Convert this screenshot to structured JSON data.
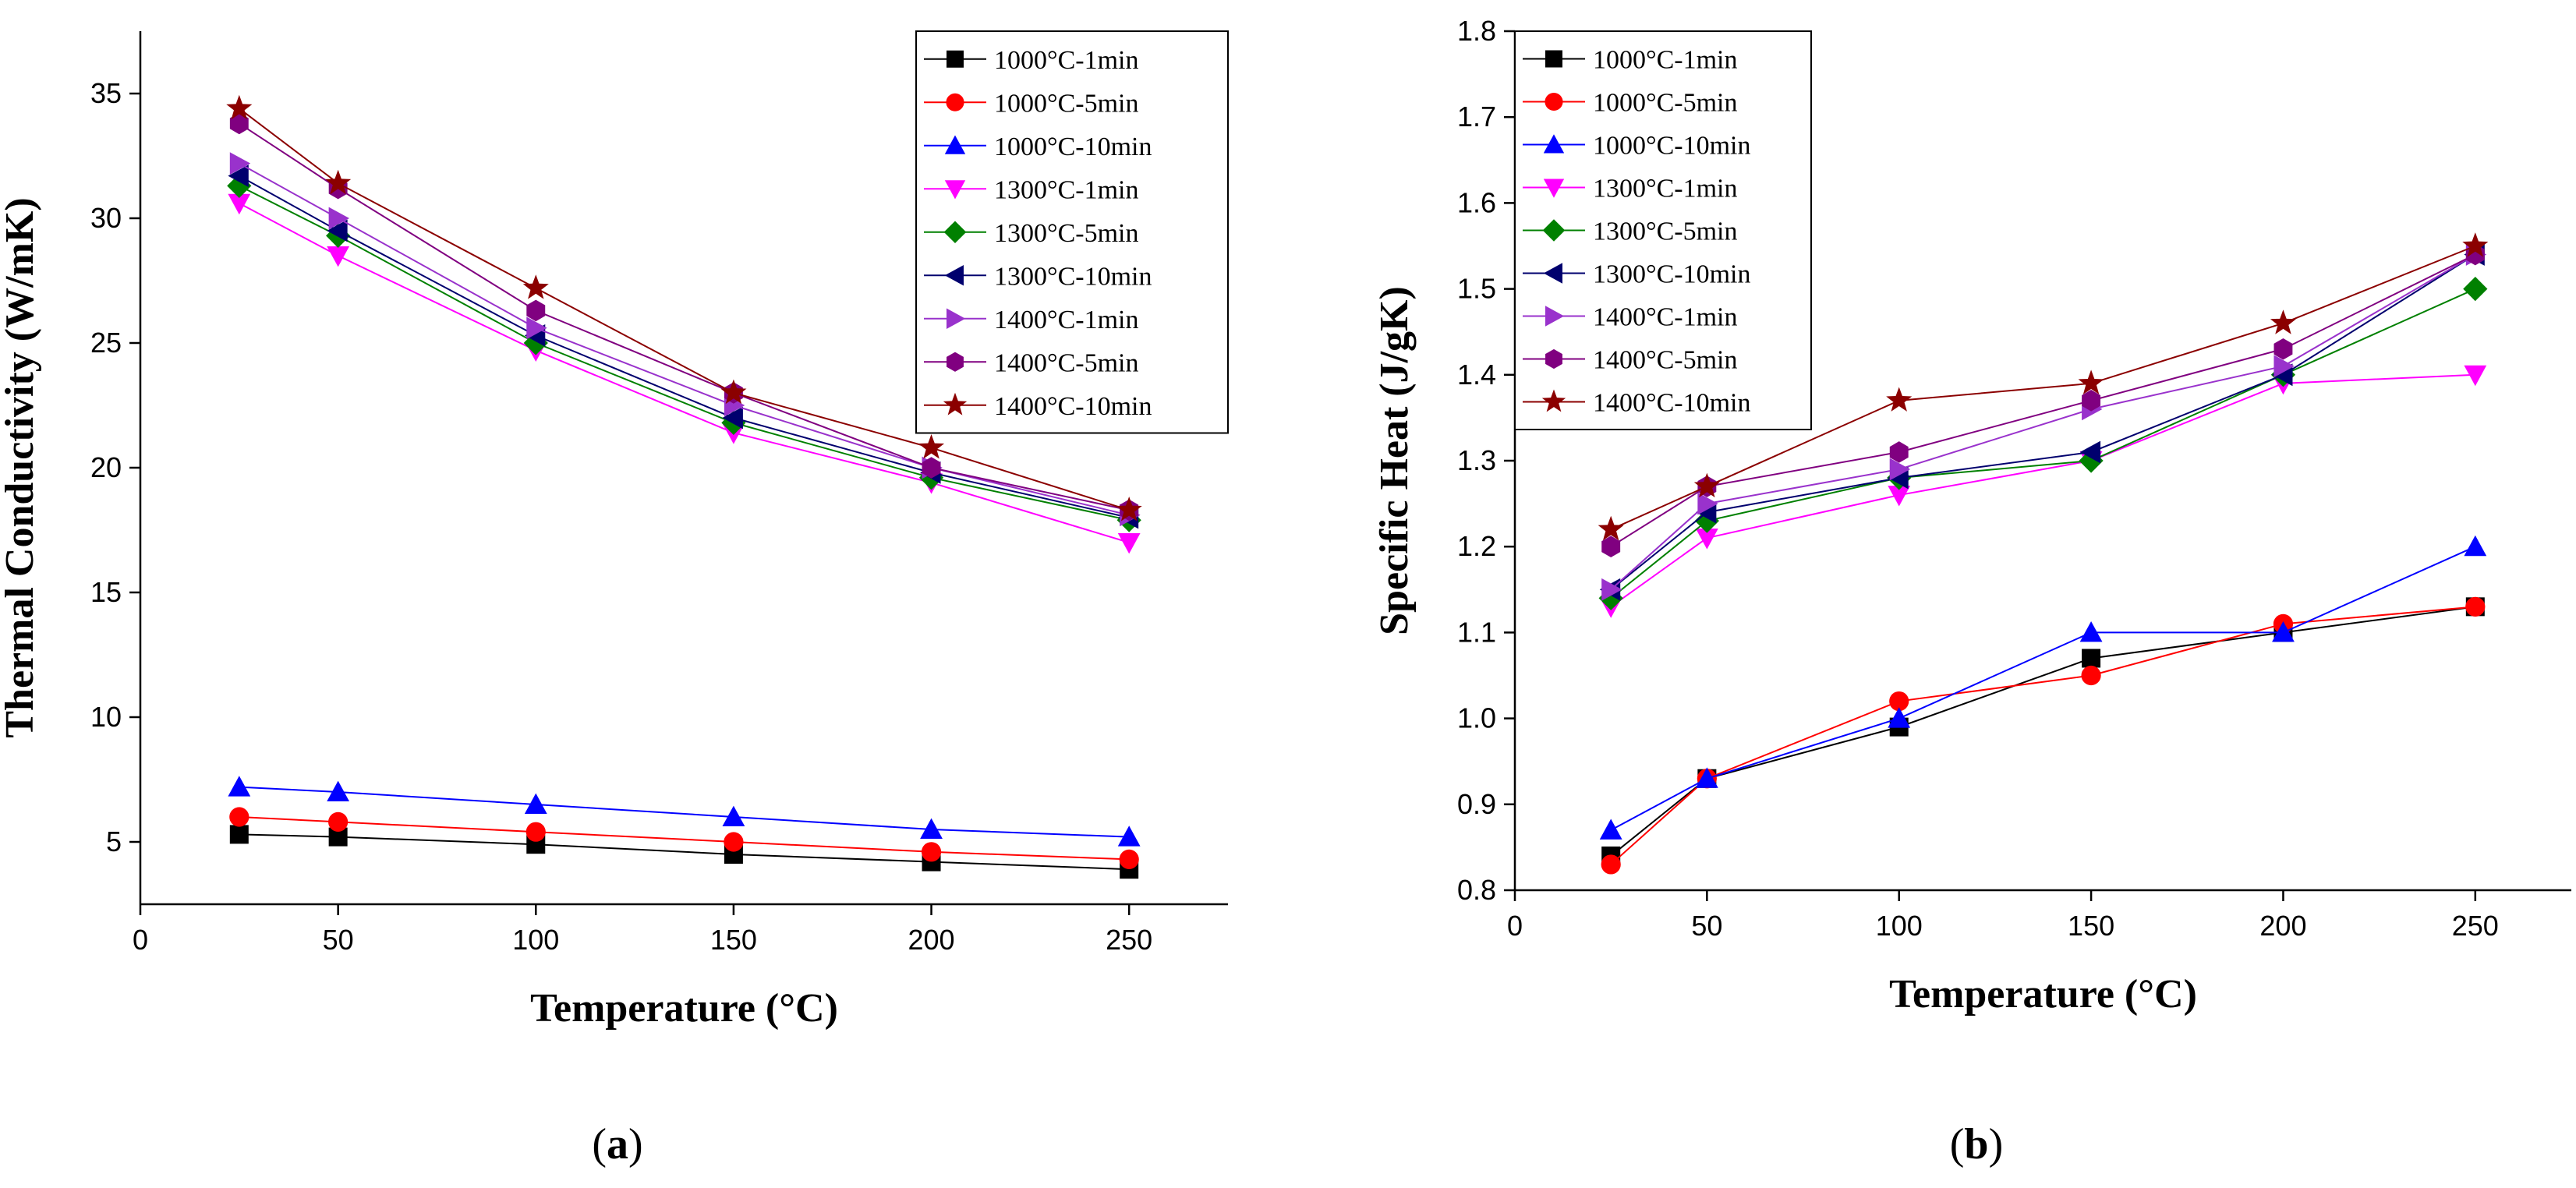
{
  "figure": {
    "captions": [
      {
        "open": "(",
        "letter": "a",
        "close": ")"
      },
      {
        "open": "(",
        "letter": "b",
        "close": ")"
      }
    ]
  },
  "chart_data": [
    {
      "type": "line",
      "panel": "a",
      "title": "",
      "xlabel": "Temperature (°C)",
      "ylabel": "Thermal Conductivity (W/mK)",
      "xlim": [
        0,
        275
      ],
      "ylim": [
        2.5,
        37.5
      ],
      "xticks": [
        0,
        50,
        100,
        150,
        200,
        250
      ],
      "yticks": [
        5,
        10,
        15,
        20,
        25,
        30,
        35
      ],
      "ytick_decimals": 0,
      "legend_position": "top-right",
      "x": [
        25,
        50,
        100,
        150,
        200,
        250
      ],
      "series": [
        {
          "name": "1000°C-1min",
          "color": "#000000",
          "marker": "square",
          "values": [
            5.3,
            5.2,
            4.9,
            4.5,
            4.2,
            3.9
          ]
        },
        {
          "name": "1000°C-5min",
          "color": "#ff0000",
          "marker": "circle",
          "values": [
            6.0,
            5.8,
            5.4,
            5.0,
            4.6,
            4.3
          ]
        },
        {
          "name": "1000°C-10min",
          "color": "#0000ff",
          "marker": "triangle-up",
          "values": [
            7.2,
            7.0,
            6.5,
            6.0,
            5.5,
            5.2
          ]
        },
        {
          "name": "1300°C-1min",
          "color": "#ff00ff",
          "marker": "triangle-down",
          "values": [
            30.6,
            28.5,
            24.7,
            21.4,
            19.4,
            17.0
          ]
        },
        {
          "name": "1300°C-5min",
          "color": "#008000",
          "marker": "diamond",
          "values": [
            31.3,
            29.3,
            25.0,
            21.8,
            19.6,
            17.9
          ]
        },
        {
          "name": "1300°C-10min",
          "color": "#00006e",
          "marker": "triangle-left",
          "values": [
            31.7,
            29.5,
            25.3,
            22.0,
            19.8,
            18.0
          ]
        },
        {
          "name": "1400°C-1min",
          "color": "#9932cc",
          "marker": "triangle-right",
          "values": [
            32.2,
            30.0,
            25.6,
            22.5,
            20.0,
            18.1
          ]
        },
        {
          "name": "1400°C-5min",
          "color": "#800080",
          "marker": "hexagon",
          "values": [
            33.8,
            31.2,
            26.3,
            23.0,
            20.0,
            18.3
          ]
        },
        {
          "name": "1400°C-10min",
          "color": "#8b0000",
          "marker": "star",
          "values": [
            34.4,
            31.4,
            27.2,
            23.0,
            20.8,
            18.3
          ]
        }
      ]
    },
    {
      "type": "line",
      "panel": "b",
      "title": "",
      "xlabel": "Temperature (°C)",
      "ylabel": "Specific Heat (J/gK)",
      "xlim": [
        0,
        275
      ],
      "ylim": [
        0.8,
        1.8
      ],
      "xticks": [
        0,
        50,
        100,
        150,
        200,
        250
      ],
      "yticks": [
        0.8,
        0.9,
        1.0,
        1.1,
        1.2,
        1.3,
        1.4,
        1.5,
        1.6,
        1.7,
        1.8
      ],
      "ytick_decimals": 1,
      "legend_position": "top-left",
      "x": [
        25,
        50,
        100,
        150,
        200,
        250
      ],
      "series": [
        {
          "name": "1000°C-1min",
          "color": "#000000",
          "marker": "square",
          "values": [
            0.84,
            0.93,
            0.99,
            1.07,
            1.1,
            1.13
          ]
        },
        {
          "name": "1000°C-5min",
          "color": "#ff0000",
          "marker": "circle",
          "values": [
            0.83,
            0.93,
            1.02,
            1.05,
            1.11,
            1.13
          ]
        },
        {
          "name": "1000°C-10min",
          "color": "#0000ff",
          "marker": "triangle-up",
          "values": [
            0.87,
            0.93,
            1.0,
            1.1,
            1.1,
            1.2
          ]
        },
        {
          "name": "1300°C-1min",
          "color": "#ff00ff",
          "marker": "triangle-down",
          "values": [
            1.13,
            1.21,
            1.26,
            1.3,
            1.39,
            1.4
          ]
        },
        {
          "name": "1300°C-5min",
          "color": "#008000",
          "marker": "diamond",
          "values": [
            1.14,
            1.23,
            1.28,
            1.3,
            1.4,
            1.5
          ]
        },
        {
          "name": "1300°C-10min",
          "color": "#00006e",
          "marker": "triangle-left",
          "values": [
            1.15,
            1.24,
            1.28,
            1.31,
            1.4,
            1.54
          ]
        },
        {
          "name": "1400°C-1min",
          "color": "#9932cc",
          "marker": "triangle-right",
          "values": [
            1.15,
            1.25,
            1.29,
            1.36,
            1.41,
            1.54
          ]
        },
        {
          "name": "1400°C-5min",
          "color": "#800080",
          "marker": "hexagon",
          "values": [
            1.2,
            1.27,
            1.31,
            1.37,
            1.43,
            1.54
          ]
        },
        {
          "name": "1400°C-10min",
          "color": "#8b0000",
          "marker": "star",
          "values": [
            1.22,
            1.27,
            1.37,
            1.39,
            1.46,
            1.55
          ]
        }
      ]
    }
  ]
}
